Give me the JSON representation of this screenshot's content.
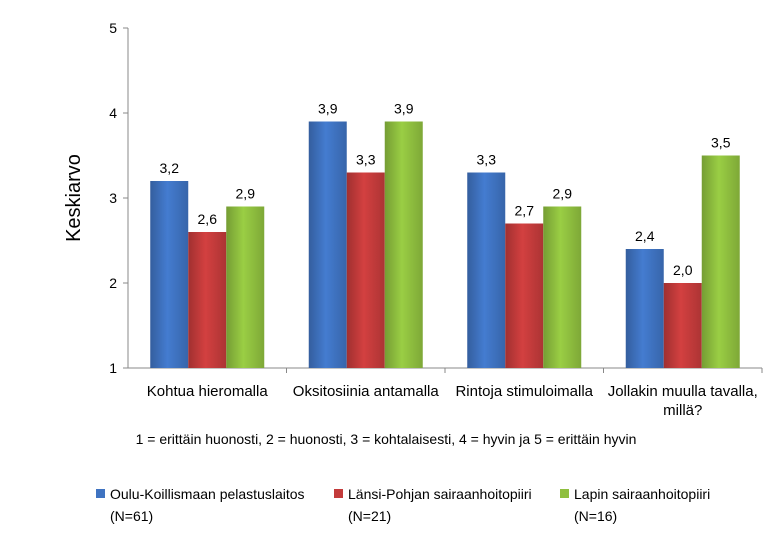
{
  "chart_data": {
    "type": "bar",
    "ylabel": "Keskiarvo",
    "ylim": [
      1,
      5
    ],
    "yticks": [
      "1",
      "2",
      "3",
      "4",
      "5"
    ],
    "grid": false,
    "legend_position": "bottom",
    "categories": [
      [
        "Kohtua hieromalla"
      ],
      [
        "Oksitosiinia antamalla"
      ],
      [
        "Rintoja stimuloimalla"
      ],
      [
        "Jollakin muulla tavalla,",
        "millä?"
      ]
    ],
    "series": [
      {
        "name": "Oulu-Koillismaan pelastuslaitos",
        "sub": "(N=61)",
        "color": "#3f73c1",
        "values": [
          3.2,
          3.9,
          3.3,
          2.4
        ],
        "labels": [
          "3,2",
          "3,9",
          "3,3",
          "2,4"
        ]
      },
      {
        "name": "Länsi-Pohjan sairaanhoitopiiri",
        "sub": "(N=21)",
        "color": "#c33b3b",
        "values": [
          2.6,
          3.3,
          2.7,
          2.0
        ],
        "labels": [
          "2,6",
          "3,3",
          "2,7",
          "2,0"
        ]
      },
      {
        "name": "Lapin sairaanhoitopiiri",
        "sub": "(N=16)",
        "color": "#8fbf3f",
        "values": [
          2.9,
          3.9,
          2.9,
          3.5
        ],
        "labels": [
          "2,9",
          "3,9",
          "2,9",
          "3,5"
        ]
      }
    ],
    "note": "1 = erittäin huonosti, 2 = huonosti, 3 = kohtalaisesti, 4 = hyvin ja 5 = erittäin hyvin"
  }
}
